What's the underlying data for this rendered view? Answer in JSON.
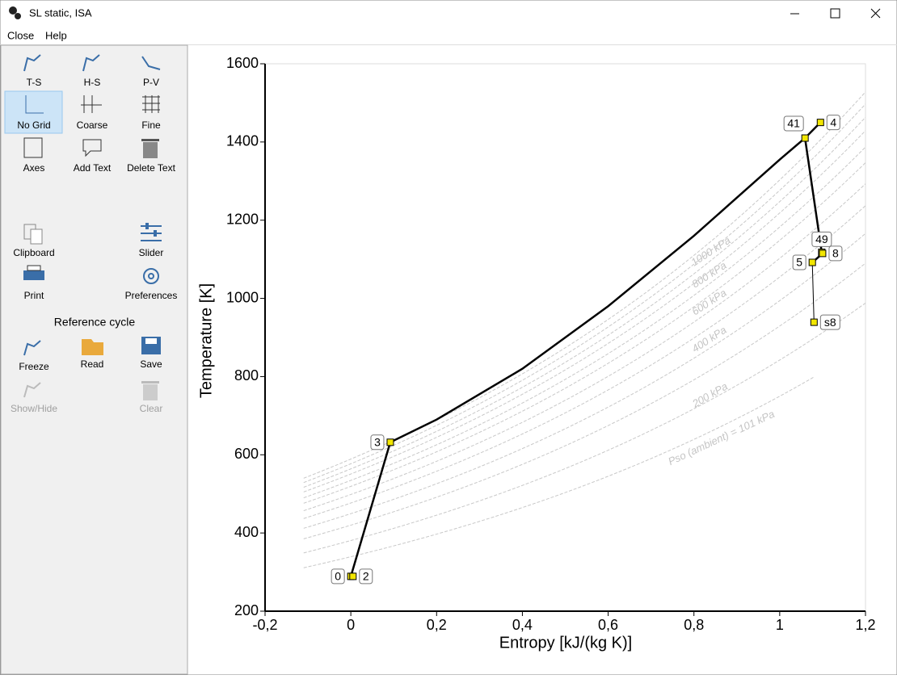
{
  "window": {
    "title": "SL static, ISA"
  },
  "menu": [
    "Close",
    "Help"
  ],
  "toolbar": {
    "items": [
      "T-S",
      "H-S",
      "P-V",
      "No Grid",
      "Coarse",
      "Fine",
      "Axes",
      "Add Text",
      "Delete Text",
      "Clipboard",
      "Slider",
      "Print",
      "Preferences"
    ],
    "section": "Reference cycle",
    "cycle_items": [
      "Freeze",
      "Read",
      "Save",
      "Show/Hide",
      "Clear"
    ]
  },
  "chart_data": {
    "type": "line",
    "x_label": "Entropy [kJ/(kg K)]",
    "y_label": "Temperature [K]",
    "xlim": [
      -0.2,
      1.2
    ],
    "ylim": [
      200,
      1600
    ],
    "xticks": [
      {
        "value": -0.2,
        "label": "-0,2"
      },
      0,
      {
        "value": 0.2,
        "label": "0,2"
      },
      {
        "value": 0.4,
        "label": "0,4"
      },
      {
        "value": 0.6,
        "label": "0,6"
      },
      {
        "value": 0.8,
        "label": "0,8"
      },
      1,
      {
        "value": 1.2,
        "label": "1,2"
      }
    ],
    "yticks": [
      200,
      400,
      600,
      800,
      1000,
      1200,
      1400,
      1600
    ],
    "grid": false,
    "cycle": {
      "color": "#000000",
      "x": [
        0,
        0.092,
        0.2,
        0.4,
        0.6,
        0.8,
        1.0,
        1.059,
        1.095,
        1.059,
        1.098,
        1.1,
        1.076
      ],
      "y": [
        289,
        632,
        690,
        820,
        980,
        1160,
        1355,
        1410,
        1450,
        1410,
        1118,
        1115,
        1092
      ]
    },
    "expansion": {
      "color": "#000000",
      "x": [
        1.076,
        1.08
      ],
      "y": [
        1092,
        939
      ]
    },
    "points": {
      "color": "#f2e600",
      "labels": [
        "0",
        "2",
        "3",
        "41",
        "4",
        "49",
        "5",
        "8",
        "s8"
      ],
      "x": [
        0,
        0.005,
        0.092,
        1.059,
        1.095,
        1.098,
        1.076,
        1.1,
        1.08
      ],
      "y": [
        289,
        289,
        632,
        1410,
        1450,
        1118,
        1092,
        1115,
        939
      ]
    },
    "isobars": {
      "color": "#c8c8c8",
      "lines": [
        {
          "x": [
            -0.11,
            1.08
          ],
          "y": [
            311,
            799
          ],
          "label": "Pso (ambient) = 101 kPa"
        },
        {
          "x": [
            -0.11,
            1.2
          ],
          "y": [
            349,
            988
          ],
          "label": "200 kPa"
        },
        {
          "x": [
            -0.11,
            1.2
          ],
          "y": [
            385,
            1090
          ]
        },
        {
          "x": [
            -0.11,
            1.2
          ],
          "y": [
            412,
            1166
          ],
          "label": "400 kPa"
        },
        {
          "x": [
            -0.11,
            1.2
          ],
          "y": [
            437,
            1237
          ]
        },
        {
          "x": [
            -0.11,
            1.2
          ],
          "y": [
            457,
            1293
          ],
          "label": "600 kPa"
        },
        {
          "x": [
            -0.11,
            1.2
          ],
          "y": [
            476,
            1347
          ]
        },
        {
          "x": [
            -0.11,
            1.2
          ],
          "y": [
            490,
            1387
          ],
          "label": "800 kPa"
        },
        {
          "x": [
            -0.11,
            1.2
          ],
          "y": [
            505,
            1429
          ]
        },
        {
          "x": [
            -0.11,
            1.2
          ],
          "y": [
            517,
            1463
          ],
          "label": "1000 kPa"
        },
        {
          "x": [
            -0.11,
            1.2
          ],
          "y": [
            529,
            1497
          ]
        },
        {
          "x": [
            -0.11,
            1.2
          ],
          "y": [
            540,
            1528
          ]
        }
      ]
    }
  }
}
